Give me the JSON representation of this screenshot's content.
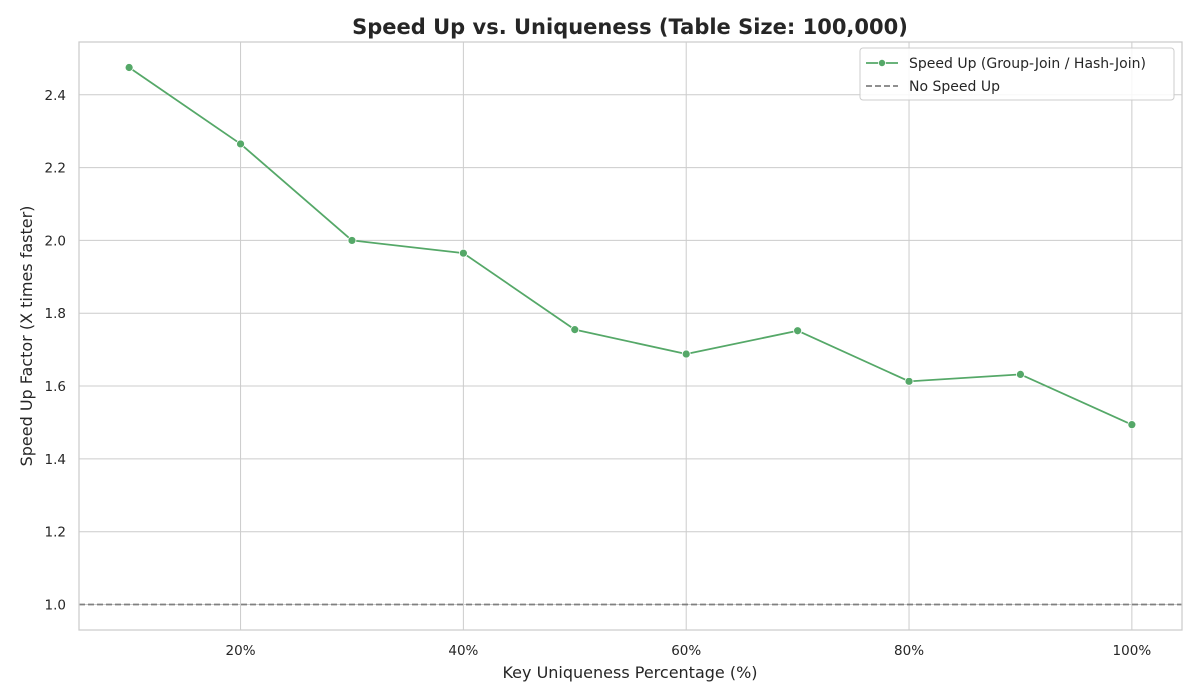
{
  "chart_data": {
    "type": "line",
    "title": "Speed Up vs. Uniqueness (Table Size: 100,000)",
    "xlabel": "Key Uniqueness Percentage (%)",
    "ylabel": "Speed Up Factor (X times faster)",
    "x": [
      10,
      20,
      30,
      40,
      50,
      60,
      70,
      80,
      90,
      100
    ],
    "xlim": [
      5.5,
      104.5
    ],
    "ylim": [
      0.93,
      2.545
    ],
    "x_ticks": [
      20,
      40,
      60,
      80,
      100
    ],
    "x_tick_labels": [
      "20%",
      "40%",
      "60%",
      "80%",
      "100%"
    ],
    "y_ticks": [
      1.0,
      1.2,
      1.4,
      1.6,
      1.8,
      2.0,
      2.2,
      2.4
    ],
    "y_tick_labels": [
      "1.0",
      "1.2",
      "1.4",
      "1.6",
      "1.8",
      "2.0",
      "2.2",
      "2.4"
    ],
    "grid": true,
    "legend_position": "top-right",
    "series": [
      {
        "name": "Speed Up (Group-Join / Hash-Join)",
        "style": "solid-with-markers",
        "color": "#55a868",
        "values": [
          2.475,
          2.265,
          2.0,
          1.965,
          1.755,
          1.688,
          1.752,
          1.613,
          1.632,
          1.494
        ]
      }
    ],
    "reference_lines": [
      {
        "name": "No Speed Up",
        "y": 1.0,
        "style": "dashed",
        "color": "#808080"
      }
    ]
  }
}
